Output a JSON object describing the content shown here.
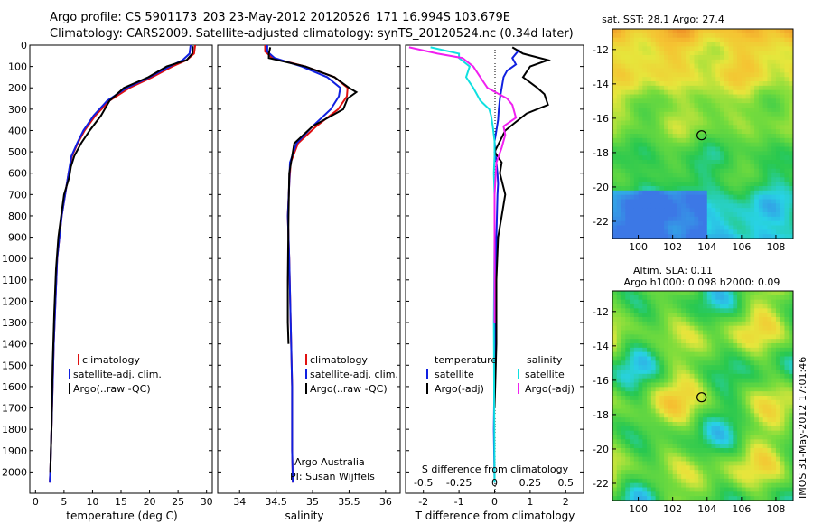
{
  "header": {
    "line1": "Argo profile: CS 5901173_203 23-May-2012 20120526_171 16.994S 103.679E",
    "line2": "Climatology: CARS2009. Satellite-adjusted climatology: synTS_20120524.nc (0.34d later)"
  },
  "colors": {
    "climatology": "#e01010",
    "satellite": "#1020e0",
    "argo": "#000000",
    "sal_satellite": "#10e0e0",
    "sal_argo": "#f020f0"
  },
  "chart_data": [
    {
      "id": "temperature",
      "type": "line",
      "xlabel": "temperature (deg C)",
      "ylabel": "",
      "xlim": [
        -1,
        31
      ],
      "ylim": [
        2100,
        0
      ],
      "xticks": [
        "0",
        "5",
        "10",
        "15",
        "20",
        "25",
        "30"
      ],
      "yticks": [
        "0",
        "100",
        "200",
        "300",
        "400",
        "500",
        "600",
        "700",
        "800",
        "900",
        "1000",
        "1100",
        "1200",
        "1300",
        "1400",
        "1500",
        "1600",
        "1700",
        "1800",
        "1900",
        "2000"
      ],
      "legend": [
        "climatology",
        "satellite-adj. clim.",
        "Argo(..raw -QC)"
      ],
      "series": [
        {
          "name": "climatology",
          "x": [
            28.0,
            27.8,
            26.5,
            24.0,
            20.5,
            16.5,
            13.0,
            10.5,
            8.6,
            7.4,
            6.4,
            5.8,
            5.2,
            4.6,
            4.2,
            3.8,
            3.5,
            3.2,
            3.0,
            2.8,
            2.6,
            2.5
          ],
          "y": [
            0,
            40,
            70,
            100,
            150,
            200,
            260,
            330,
            400,
            460,
            520,
            600,
            700,
            800,
            900,
            1000,
            1200,
            1400,
            1600,
            1800,
            2000,
            2050
          ]
        },
        {
          "name": "satellite-adj. clim.",
          "x": [
            27.2,
            27.0,
            25.8,
            23.5,
            20.0,
            16.0,
            12.6,
            10.2,
            8.4,
            7.3,
            6.3,
            5.8,
            5.2,
            4.6,
            4.2,
            3.8,
            3.5,
            3.2,
            3.0,
            2.8,
            2.6,
            2.5
          ],
          "y": [
            0,
            40,
            70,
            100,
            150,
            200,
            260,
            330,
            400,
            460,
            520,
            600,
            700,
            800,
            900,
            1000,
            1200,
            1400,
            1600,
            1800,
            2000,
            2050
          ]
        },
        {
          "name": "Argo(..raw -QC)",
          "x": [
            27.6,
            27.5,
            26.5,
            23.0,
            19.8,
            15.5,
            13.0,
            11.5,
            9.5,
            8.0,
            6.8,
            6.2,
            5.9,
            5.0,
            4.5,
            4.0,
            3.6,
            3.3,
            3.0,
            2.8,
            2.6
          ],
          "y": [
            5,
            40,
            70,
            100,
            150,
            200,
            260,
            330,
            400,
            460,
            520,
            570,
            620,
            700,
            800,
            900,
            1050,
            1250,
            1500,
            1800,
            2000
          ]
        }
      ]
    },
    {
      "id": "salinity",
      "type": "line",
      "xlabel": "salinity",
      "xlim": [
        33.7,
        36.2
      ],
      "ylim": [
        2100,
        0
      ],
      "xticks": [
        "34",
        "34.5",
        "35",
        "35.5",
        "36"
      ],
      "legend": [
        "climatology",
        "satellite-adj. clim.",
        "Argo(..raw -QC)"
      ],
      "annotation": [
        "Argo Australia",
        "PI: Susan Wijffels"
      ],
      "series": [
        {
          "name": "climatology",
          "x": [
            34.35,
            34.35,
            34.45,
            34.9,
            35.3,
            35.48,
            35.47,
            35.35,
            35.05,
            34.8,
            34.7,
            34.68,
            34.66,
            34.68,
            34.7,
            34.72,
            34.72,
            34.73
          ],
          "y": [
            0,
            30,
            60,
            100,
            150,
            200,
            240,
            300,
            380,
            460,
            550,
            650,
            800,
            1000,
            1300,
            1600,
            1900,
            2050
          ]
        },
        {
          "name": "satellite-adj. clim.",
          "x": [
            34.38,
            34.38,
            34.48,
            34.85,
            35.2,
            35.38,
            35.36,
            35.25,
            35.0,
            34.78,
            34.69,
            34.68,
            34.66,
            34.68,
            34.7,
            34.72,
            34.72,
            34.73
          ],
          "y": [
            0,
            30,
            60,
            100,
            150,
            200,
            240,
            300,
            380,
            460,
            550,
            650,
            800,
            1000,
            1300,
            1600,
            1900,
            2050
          ]
        },
        {
          "name": "Argo(..raw -QC)",
          "x": [
            34.42,
            34.4,
            34.4,
            34.9,
            35.3,
            35.5,
            35.6,
            35.48,
            35.42,
            35.0,
            34.75,
            34.68,
            34.67,
            34.66,
            34.66,
            34.67
          ],
          "y": [
            10,
            40,
            60,
            100,
            150,
            200,
            220,
            250,
            300,
            380,
            460,
            600,
            800,
            1100,
            1300,
            1400
          ]
        }
      ]
    },
    {
      "id": "difference",
      "type": "line",
      "xlabel": "T difference from climatology",
      "toplabel": "S difference from climatology",
      "xlim": [
        -2.5,
        2.5
      ],
      "ylim": [
        2100,
        0
      ],
      "xticks": [
        "-2",
        "-1",
        "0",
        "1",
        "2"
      ],
      "stick_labels": [
        "-0.5",
        "-0.25",
        "0",
        "0.25",
        "0.5"
      ],
      "legend_headers": [
        "temperature",
        "salinity"
      ],
      "legend": [
        "satellite",
        "Argo(-adj)",
        "satellite",
        "Argo(-adj)"
      ],
      "series": [
        {
          "name": "T satellite",
          "x": [
            0.7,
            0.5,
            0.6,
            0.35,
            0.25,
            0.2,
            0.15,
            0.12,
            0.1,
            0.05,
            0.0,
            0.02,
            0.05,
            0.08,
            0.1,
            0.08,
            0.05,
            0.02,
            0.0,
            -0.02,
            0.0
          ],
          "y": [
            20,
            60,
            90,
            120,
            150,
            200,
            250,
            300,
            350,
            400,
            450,
            500,
            550,
            600,
            650,
            700,
            900,
            1200,
            1500,
            1800,
            2050
          ]
        },
        {
          "name": "T Argo(-adj)",
          "x": [
            0.5,
            0.8,
            1.5,
            1.0,
            0.8,
            1.2,
            1.4,
            1.5,
            0.9,
            0.6,
            0.3,
            0.15,
            0.0,
            0.2,
            0.15,
            0.3,
            0.2,
            0.1,
            0.05,
            0.05,
            0.0
          ],
          "y": [
            10,
            40,
            70,
            100,
            150,
            200,
            230,
            280,
            320,
            360,
            400,
            450,
            500,
            550,
            600,
            700,
            800,
            900,
            1100,
            1400,
            1700
          ]
        },
        {
          "name": "S satellite",
          "x": [
            -1.8,
            -1.0,
            -1.0,
            -0.7,
            -0.8,
            -0.6,
            -0.4,
            -0.15,
            -0.1,
            -0.05,
            0.0,
            0.0,
            -0.02,
            0.0,
            0.0,
            -0.02,
            0.0
          ],
          "y": [
            10,
            40,
            60,
            100,
            150,
            200,
            260,
            300,
            330,
            380,
            450,
            520,
            600,
            700,
            900,
            1300,
            2050
          ]
        },
        {
          "name": "S Argo(-adj)",
          "x": [
            -2.4,
            -1.6,
            -0.9,
            -0.6,
            -0.4,
            -0.2,
            0.35,
            0.5,
            0.6,
            0.25,
            0.3,
            0.2,
            0.05,
            0.0,
            0.0
          ],
          "y": [
            10,
            40,
            60,
            100,
            150,
            200,
            250,
            280,
            340,
            380,
            420,
            480,
            550,
            700,
            1300
          ]
        }
      ]
    },
    {
      "id": "sst_map",
      "type": "heatmap",
      "title": "sat. SST: 28.1  Argo: 27.4",
      "xlim": [
        98.5,
        109
      ],
      "ylim": [
        -23,
        -10.8
      ],
      "xticks": [
        "100",
        "102",
        "104",
        "106",
        "108"
      ],
      "yticks": [
        "-12",
        "-14",
        "-16",
        "-18",
        "-20",
        "-22"
      ],
      "marker": {
        "lon": 103.68,
        "lat": -16.99
      }
    },
    {
      "id": "sla_map",
      "type": "heatmap",
      "title_lines": [
        "Altim. SLA: 0.11",
        "Argo h1000: 0.098  h2000: 0.09"
      ],
      "xlim": [
        98.5,
        109
      ],
      "ylim": [
        -23,
        -10.8
      ],
      "xticks": [
        "100",
        "102",
        "104",
        "106",
        "108"
      ],
      "yticks": [
        "-12",
        "-14",
        "-16",
        "-18",
        "-20",
        "-22"
      ],
      "marker": {
        "lon": 103.68,
        "lat": -16.99
      }
    }
  ],
  "credit": "IMOS 31-May-2012 17:01:46"
}
